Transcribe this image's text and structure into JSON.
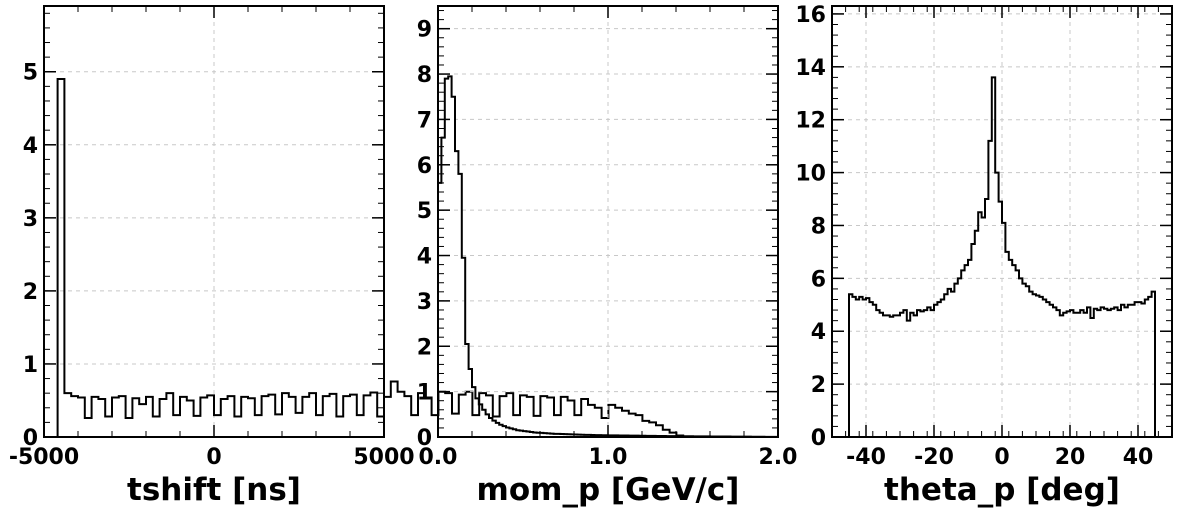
{
  "chart_data": [
    {
      "type": "bar",
      "style": "step-histogram",
      "xlabel": "tshift [ns]",
      "ylabel": "",
      "xlim": [
        -5000,
        5000
      ],
      "ylim": [
        0,
        5.9
      ],
      "xticks": [
        -5000,
        0,
        5000
      ],
      "xtick_labels": [
        "-5000",
        "0",
        "5000"
      ],
      "yticks": [
        0,
        1,
        2,
        3,
        4,
        5
      ],
      "ytick_labels": [
        "0",
        "1",
        "2",
        "3",
        "4",
        "5"
      ],
      "grid": true,
      "bin_edges_start": -5000,
      "bin_width": 200,
      "values": [
        0.0,
        0.0,
        4.9,
        0.6,
        0.56,
        0.54,
        0.26,
        0.55,
        0.52,
        0.28,
        0.54,
        0.56,
        0.26,
        0.53,
        0.45,
        0.55,
        0.28,
        0.52,
        0.6,
        0.3,
        0.55,
        0.5,
        0.29,
        0.54,
        0.57,
        0.3,
        0.52,
        0.56,
        0.28,
        0.55,
        0.53,
        0.3,
        0.56,
        0.58,
        0.31,
        0.6,
        0.55,
        0.33,
        0.55,
        0.6,
        0.3,
        0.56,
        0.59,
        0.28,
        0.56,
        0.58,
        0.3,
        0.57,
        0.61,
        0.28,
        0.55,
        0.76,
        0.62,
        0.56,
        0.3,
        0.6,
        0.54,
        0.3,
        0.62,
        0.6,
        0.32,
        0.58,
        0.62,
        0.3,
        0.6,
        0.57,
        0.28,
        0.56,
        0.6,
        0.3,
        0.57,
        0.55,
        0.29,
        0.56,
        0.54,
        0.3,
        0.55,
        0.5,
        0.3,
        0.52,
        0.44,
        0.4,
        0.26,
        0.44,
        0.4,
        0.36,
        0.32,
        0.3,
        0.22,
        0.2,
        0.16,
        0.1,
        0.06,
        0.02,
        0.0,
        0.0,
        0.0,
        0.0,
        0.0,
        0.0
      ]
    },
    {
      "type": "bar",
      "style": "step-histogram",
      "xlabel": "mom_p [GeV/c]",
      "ylabel": "",
      "xlim": [
        0.0,
        2.0
      ],
      "ylim": [
        0,
        9.5
      ],
      "xticks": [
        0.0,
        1.0,
        2.0
      ],
      "xtick_labels": [
        "0.0",
        "1.0",
        "2.0"
      ],
      "yticks": [
        0,
        1,
        2,
        3,
        4,
        5,
        6,
        7,
        8,
        9
      ],
      "ytick_labels": [
        "0",
        "1",
        "2",
        "3",
        "4",
        "5",
        "6",
        "7",
        "8",
        "9"
      ],
      "grid": true,
      "bin_edges_start": 0.0,
      "bin_width": 0.02,
      "values": [
        5.6,
        6.6,
        7.9,
        7.95,
        7.5,
        6.3,
        5.8,
        3.95,
        2.05,
        1.5,
        1.1,
        0.85,
        0.72,
        0.6,
        0.5,
        0.42,
        0.36,
        0.31,
        0.27,
        0.24,
        0.21,
        0.19,
        0.17,
        0.15,
        0.14,
        0.13,
        0.12,
        0.11,
        0.1,
        0.095,
        0.09,
        0.085,
        0.08,
        0.075,
        0.07,
        0.068,
        0.065,
        0.062,
        0.06,
        0.058,
        0.055,
        0.052,
        0.05,
        0.048,
        0.046,
        0.044,
        0.042,
        0.04,
        0.039,
        0.038,
        0.037,
        0.036,
        0.035,
        0.034,
        0.033,
        0.032,
        0.031,
        0.03,
        0.029,
        0.028,
        0.027,
        0.026,
        0.025,
        0.024,
        0.023,
        0.022,
        0.021,
        0.02,
        0.02,
        0.019,
        0.018,
        0.018,
        0.017,
        0.016,
        0.016,
        0.015,
        0.015,
        0.014,
        0.013,
        0.013,
        0.012,
        0.012,
        0.011,
        0.011,
        0.01,
        0.01,
        0.009,
        0.009,
        0.008,
        0.008,
        0.007,
        0.007,
        0.006,
        0.006,
        0.005,
        0.005,
        0.004,
        0.004,
        0.003,
        0.003
      ]
    },
    {
      "type": "bar",
      "style": "step-histogram",
      "xlabel": "theta_p [deg]",
      "ylabel": "",
      "xlim": [
        -50,
        50
      ],
      "ylim": [
        0,
        16.3
      ],
      "xticks": [
        -40,
        -20,
        0,
        20,
        40
      ],
      "xtick_labels": [
        "-40",
        "-20",
        "0",
        "20",
        "40"
      ],
      "yticks": [
        0,
        2,
        4,
        6,
        8,
        10,
        12,
        14,
        16
      ],
      "ytick_labels": [
        "0",
        "2",
        "4",
        "6",
        "8",
        "10",
        "12",
        "14",
        "16"
      ],
      "grid": true,
      "bin_edges_start": -45,
      "bin_width": 1,
      "values": [
        5.4,
        5.3,
        5.2,
        5.3,
        5.2,
        5.25,
        5.1,
        5.0,
        4.8,
        4.7,
        4.6,
        4.6,
        4.55,
        4.6,
        4.6,
        4.7,
        4.8,
        4.4,
        4.7,
        4.6,
        4.8,
        4.75,
        4.8,
        4.9,
        4.8,
        5.0,
        5.1,
        5.2,
        5.4,
        5.6,
        5.5,
        5.8,
        6.0,
        6.3,
        6.5,
        6.7,
        7.3,
        7.8,
        8.5,
        8.3,
        9.0,
        11.2,
        13.6,
        10.0,
        8.9,
        8.1,
        7.0,
        6.7,
        6.5,
        6.3,
        6.0,
        5.8,
        5.7,
        5.5,
        5.4,
        5.35,
        5.3,
        5.2,
        5.1,
        5.0,
        4.9,
        4.8,
        4.6,
        4.7,
        4.75,
        4.8,
        4.7,
        4.7,
        4.8,
        4.7,
        4.9,
        4.5,
        4.85,
        4.8,
        4.9,
        4.85,
        4.8,
        4.85,
        4.9,
        4.8,
        5.0,
        4.9,
        5.0,
        5.0,
        5.1,
        5.1,
        5.05,
        5.2,
        5.3,
        5.5
      ]
    }
  ]
}
